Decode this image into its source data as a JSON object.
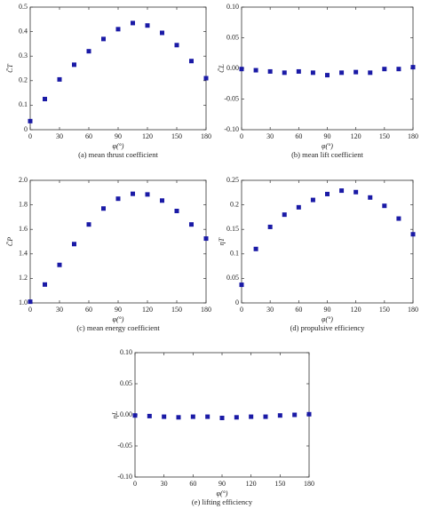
{
  "chart_data": [
    {
      "type": "scatter",
      "caption": "(a) mean thrust coefficient",
      "xlabel": "φ(°)",
      "ylabel": "C̄T",
      "color": "#1a1aa6",
      "x": [
        0,
        15,
        30,
        45,
        60,
        75,
        90,
        105,
        120,
        135,
        150,
        165,
        180
      ],
      "values": [
        0.035,
        0.125,
        0.205,
        0.265,
        0.32,
        0.37,
        0.41,
        0.435,
        0.425,
        0.395,
        0.345,
        0.28,
        0.21
      ],
      "xlim": [
        0,
        180
      ],
      "xticks": [
        0,
        30,
        60,
        90,
        120,
        150,
        180
      ],
      "ylim": [
        0,
        0.5
      ],
      "yticks": [
        0,
        0.1,
        0.2,
        0.3,
        0.4,
        0.5
      ]
    },
    {
      "type": "scatter",
      "caption": "(b) mean lift coefficient",
      "xlabel": "φ(°)",
      "ylabel": "C̄L",
      "color": "#1a1aa6",
      "x": [
        0,
        15,
        30,
        45,
        60,
        75,
        90,
        105,
        120,
        135,
        150,
        165,
        180
      ],
      "values": [
        -0.001,
        -0.003,
        -0.005,
        -0.007,
        -0.005,
        -0.007,
        -0.011,
        -0.007,
        -0.006,
        -0.007,
        -0.001,
        -0.001,
        0.002
      ],
      "xlim": [
        0,
        180
      ],
      "xticks": [
        0,
        30,
        60,
        90,
        120,
        150,
        180
      ],
      "ylim": [
        -0.1,
        0.1
      ],
      "yticks": [
        {
          "value": -0.1,
          "label": "-0.10"
        },
        {
          "value": -0.05,
          "label": "-0.05"
        },
        {
          "value": 0,
          "label": "0.00"
        },
        {
          "value": 0.05,
          "label": "0.05"
        },
        {
          "value": 0.1,
          "label": "0.10"
        }
      ]
    },
    {
      "type": "scatter",
      "caption": "(c) mean energy coefficient",
      "xlabel": "φ(°)",
      "ylabel": "C̄P",
      "color": "#1a1aa6",
      "x": [
        0,
        15,
        30,
        45,
        60,
        75,
        90,
        105,
        120,
        135,
        150,
        165,
        180
      ],
      "values": [
        1.01,
        1.15,
        1.31,
        1.48,
        1.64,
        1.77,
        1.85,
        1.89,
        1.885,
        1.835,
        1.75,
        1.64,
        1.525
      ],
      "xlim": [
        0,
        180
      ],
      "xticks": [
        0,
        30,
        60,
        90,
        120,
        150,
        180
      ],
      "ylim": [
        1.0,
        2.0
      ],
      "yticks": [
        {
          "value": 1.0,
          "label": "1.0"
        },
        1.2,
        1.4,
        1.6,
        1.8,
        {
          "value": 2.0,
          "label": "2.0"
        }
      ]
    },
    {
      "type": "scatter",
      "caption": "(d) propulsive efficiency",
      "xlabel": "φ(°)",
      "ylabel": "ηT",
      "color": "#1a1aa6",
      "x": [
        0,
        15,
        30,
        45,
        60,
        75,
        90,
        105,
        120,
        135,
        150,
        165,
        180
      ],
      "values": [
        0.037,
        0.11,
        0.155,
        0.18,
        0.195,
        0.21,
        0.222,
        0.229,
        0.226,
        0.215,
        0.198,
        0.172,
        0.14
      ],
      "xlim": [
        0,
        180
      ],
      "xticks": [
        0,
        30,
        60,
        90,
        120,
        150,
        180
      ],
      "ylim": [
        0,
        0.25
      ],
      "yticks": [
        0,
        0.05,
        0.1,
        0.15,
        0.2,
        0.25
      ]
    },
    {
      "type": "scatter",
      "caption": "(e) lifting efficiency",
      "xlabel": "φ(°)",
      "ylabel": "ηL",
      "color": "#1a1aa6",
      "x": [
        0,
        15,
        30,
        45,
        60,
        75,
        90,
        105,
        120,
        135,
        150,
        165,
        180
      ],
      "values": [
        -0.001,
        -0.002,
        -0.003,
        -0.004,
        -0.003,
        -0.003,
        -0.005,
        -0.004,
        -0.003,
        -0.003,
        -0.001,
        0.0,
        0.001
      ],
      "xlim": [
        0,
        180
      ],
      "xticks": [
        0,
        30,
        60,
        90,
        120,
        150,
        180
      ],
      "ylim": [
        -0.1,
        0.1
      ],
      "yticks": [
        {
          "value": -0.1,
          "label": "-0.10"
        },
        {
          "value": -0.05,
          "label": "-0.05"
        },
        {
          "value": 0,
          "label": "0.00"
        },
        {
          "value": 0.05,
          "label": "0.05"
        },
        {
          "value": 0.1,
          "label": "0.10"
        }
      ]
    }
  ]
}
